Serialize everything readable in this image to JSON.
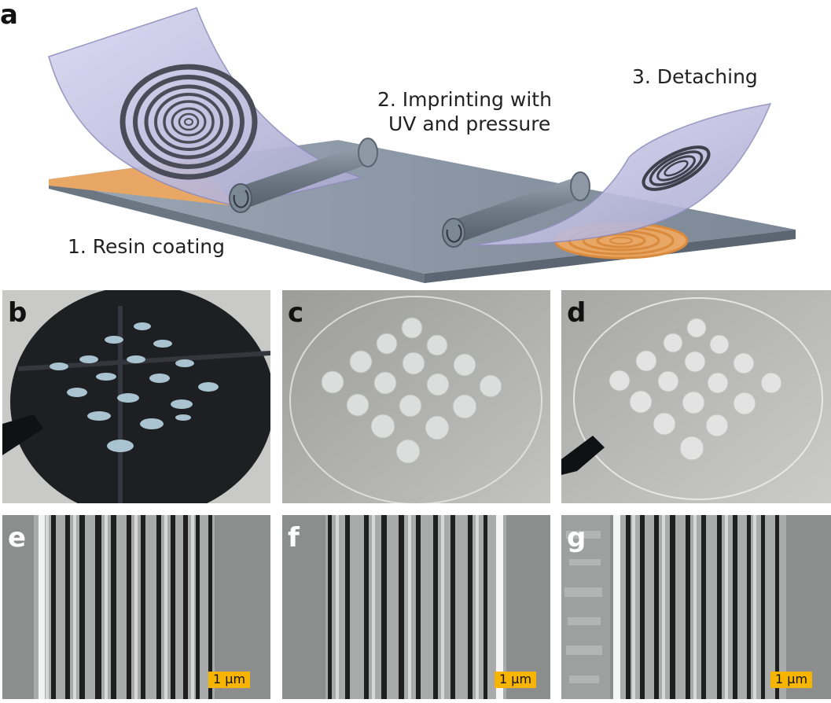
{
  "figure": {
    "panels": {
      "a": {
        "label": "a",
        "steps": {
          "step1": "1. Resin coating",
          "step2_line1": "2. Imprinting with",
          "step2_line2": "UV and pressure",
          "step3": "3. Detaching"
        }
      },
      "b": {
        "label": "b"
      },
      "c": {
        "label": "c"
      },
      "d": {
        "label": "d"
      },
      "e": {
        "label": "e",
        "scale": "1 µm"
      },
      "f": {
        "label": "f",
        "scale": "1 µm"
      },
      "g": {
        "label": "g",
        "scale": "1 µm"
      }
    },
    "colors": {
      "substrate": "#8e9aa8",
      "resin": "#e8a764",
      "film": "#c9c8e8",
      "roller": "#76818f",
      "scalebar": "#f7b500"
    }
  }
}
